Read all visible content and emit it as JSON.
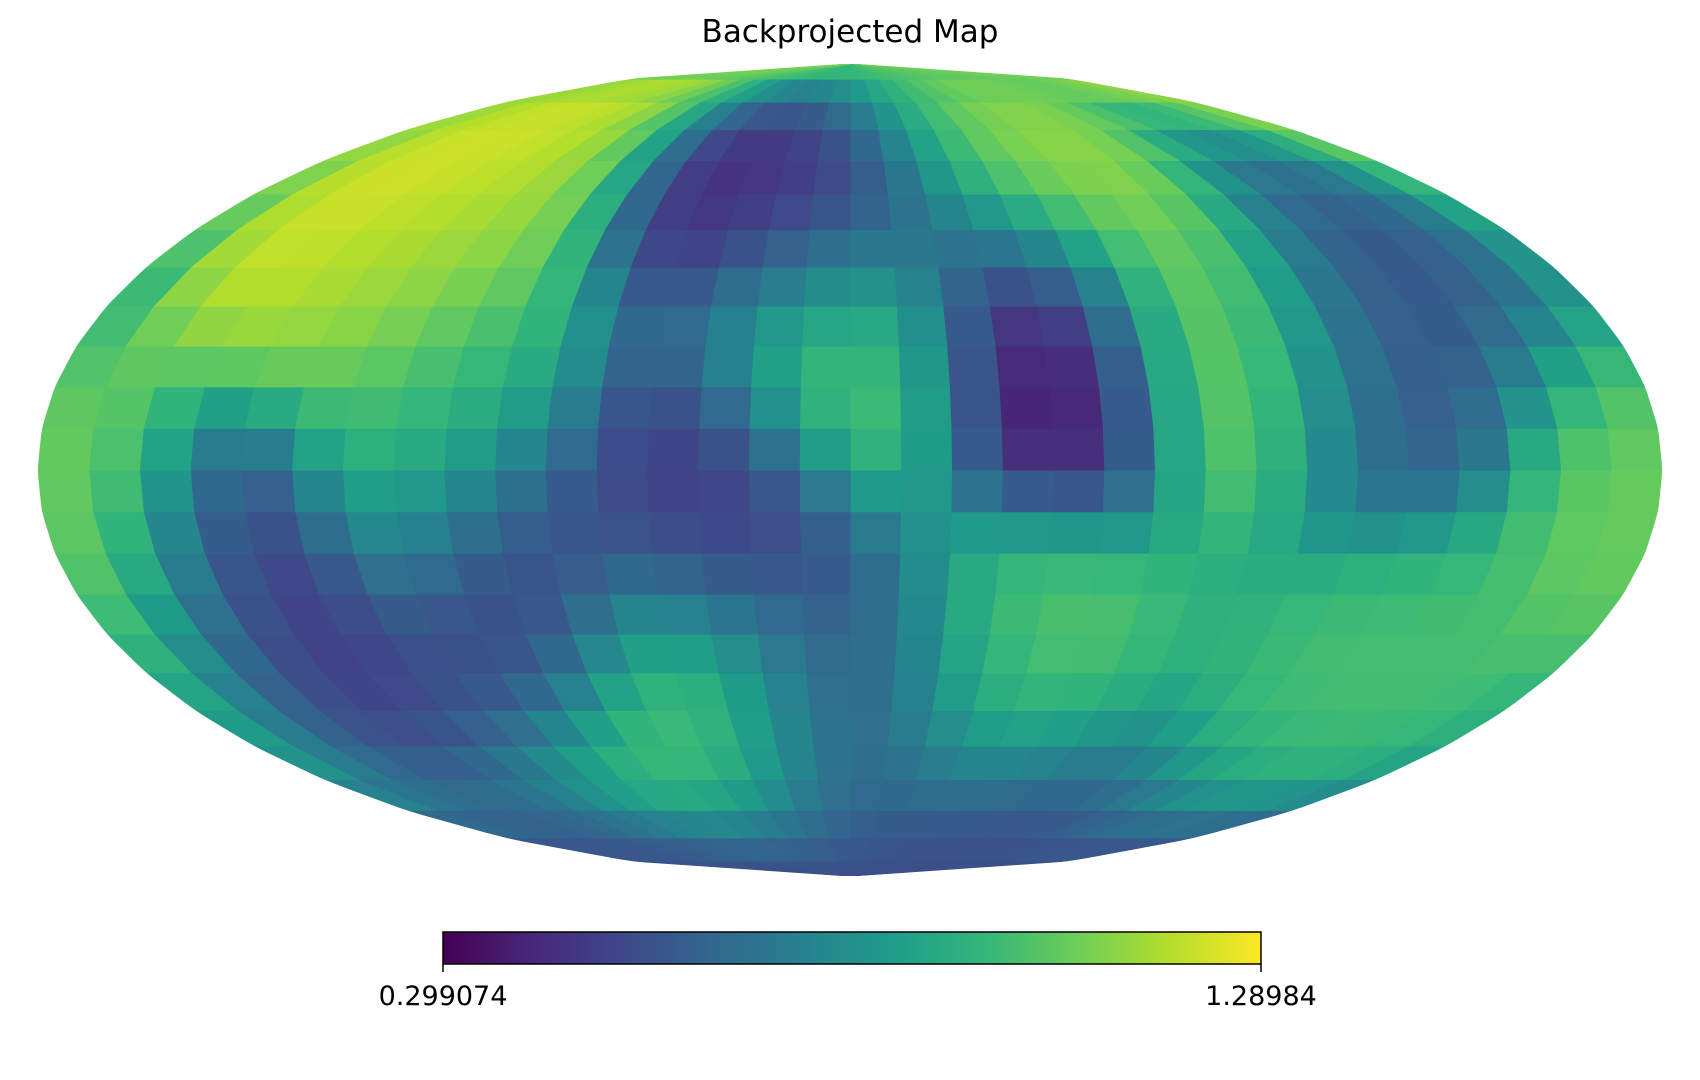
{
  "chart_data": {
    "type": "heatmap",
    "title": "Backprojected Map",
    "projection": "mollweide",
    "colormap": "viridis",
    "colormap_stops": [
      "#440154",
      "#482878",
      "#3e4989",
      "#31688e",
      "#26828e",
      "#1f9e89",
      "#35b779",
      "#6ece58",
      "#b5de2b",
      "#fde725"
    ],
    "grid": false,
    "legend": "colorbar-bottom",
    "colorbar": {
      "min": 0.299074,
      "max": 1.28984,
      "min_label": "0.299074",
      "max_label": "1.28984"
    },
    "color_range": [
      0.299074,
      1.28984
    ],
    "hotspots": [
      {
        "lon": 150,
        "lat": 55,
        "value": 1.28
      },
      {
        "lon": 120,
        "lat": 40,
        "value": 1.15
      },
      {
        "lon": -60,
        "lat": 58,
        "value": 1.18
      },
      {
        "lon": -90,
        "lat": 25,
        "value": 1.15
      },
      {
        "lon": 0,
        "lat": 25,
        "value": 1.1
      },
      {
        "lon": 170,
        "lat": -10,
        "value": 1.1
      },
      {
        "lon": -175,
        "lat": 5,
        "value": 1.05
      },
      {
        "lon": 95,
        "lat": 5,
        "value": 1.0
      },
      {
        "lon": -40,
        "lat": -40,
        "value": 1.05
      },
      {
        "lon": 40,
        "lat": -45,
        "value": 1.1
      },
      {
        "lon": -130,
        "lat": -40,
        "value": 1.0
      },
      {
        "lon": 10,
        "lat": 50,
        "value": 0.35
      },
      {
        "lon": -45,
        "lat": 25,
        "value": 0.3
      },
      {
        "lon": 80,
        "lat": -20,
        "value": 0.45
      },
      {
        "lon": 30,
        "lat": -10,
        "value": 0.45
      },
      {
        "lon": 140,
        "lat": -20,
        "value": 0.45
      },
      {
        "lon": 0,
        "lat": -45,
        "value": 0.5
      },
      {
        "lon": -50,
        "lat": -75,
        "value": 0.5
      },
      {
        "lon": -120,
        "lat": 20,
        "value": 0.55
      },
      {
        "lon": -150,
        "lat": 40,
        "value": 0.55
      }
    ]
  }
}
